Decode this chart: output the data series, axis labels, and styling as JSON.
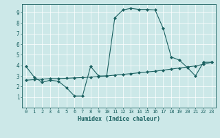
{
  "xlabel": "Humidex (Indice chaleur)",
  "xlim": [
    -0.5,
    23.5
  ],
  "ylim": [
    0,
    9.8
  ],
  "xticks": [
    0,
    1,
    2,
    3,
    4,
    5,
    6,
    7,
    8,
    9,
    10,
    11,
    12,
    13,
    14,
    15,
    16,
    17,
    18,
    19,
    20,
    21,
    22,
    23
  ],
  "yticks": [
    1,
    2,
    3,
    4,
    5,
    6,
    7,
    8,
    9
  ],
  "bg_color": "#cce8e8",
  "line_color": "#1a6060",
  "grid_color": "#ffffff",
  "line1_x": [
    0,
    1,
    2,
    3,
    4,
    5,
    6,
    7,
    8,
    9,
    10,
    11,
    12,
    13,
    14,
    15,
    16,
    17,
    18,
    19,
    20,
    21,
    22,
    23
  ],
  "line1_y": [
    3.9,
    2.9,
    2.4,
    2.6,
    2.5,
    1.9,
    1.1,
    1.1,
    3.9,
    3.0,
    3.0,
    8.5,
    9.25,
    9.4,
    9.3,
    9.3,
    9.25,
    7.5,
    4.8,
    4.5,
    3.8,
    3.0,
    4.3,
    4.3
  ],
  "line2_x": [
    0,
    1,
    2,
    3,
    4,
    5,
    6,
    7,
    8,
    9,
    10,
    11,
    12,
    13,
    14,
    15,
    16,
    17,
    18,
    19,
    20,
    21,
    22,
    23
  ],
  "line2_y": [
    2.6,
    2.65,
    2.7,
    2.75,
    2.75,
    2.78,
    2.82,
    2.85,
    2.9,
    2.95,
    3.0,
    3.08,
    3.15,
    3.22,
    3.3,
    3.38,
    3.45,
    3.55,
    3.65,
    3.75,
    3.85,
    3.95,
    4.1,
    4.3
  ]
}
